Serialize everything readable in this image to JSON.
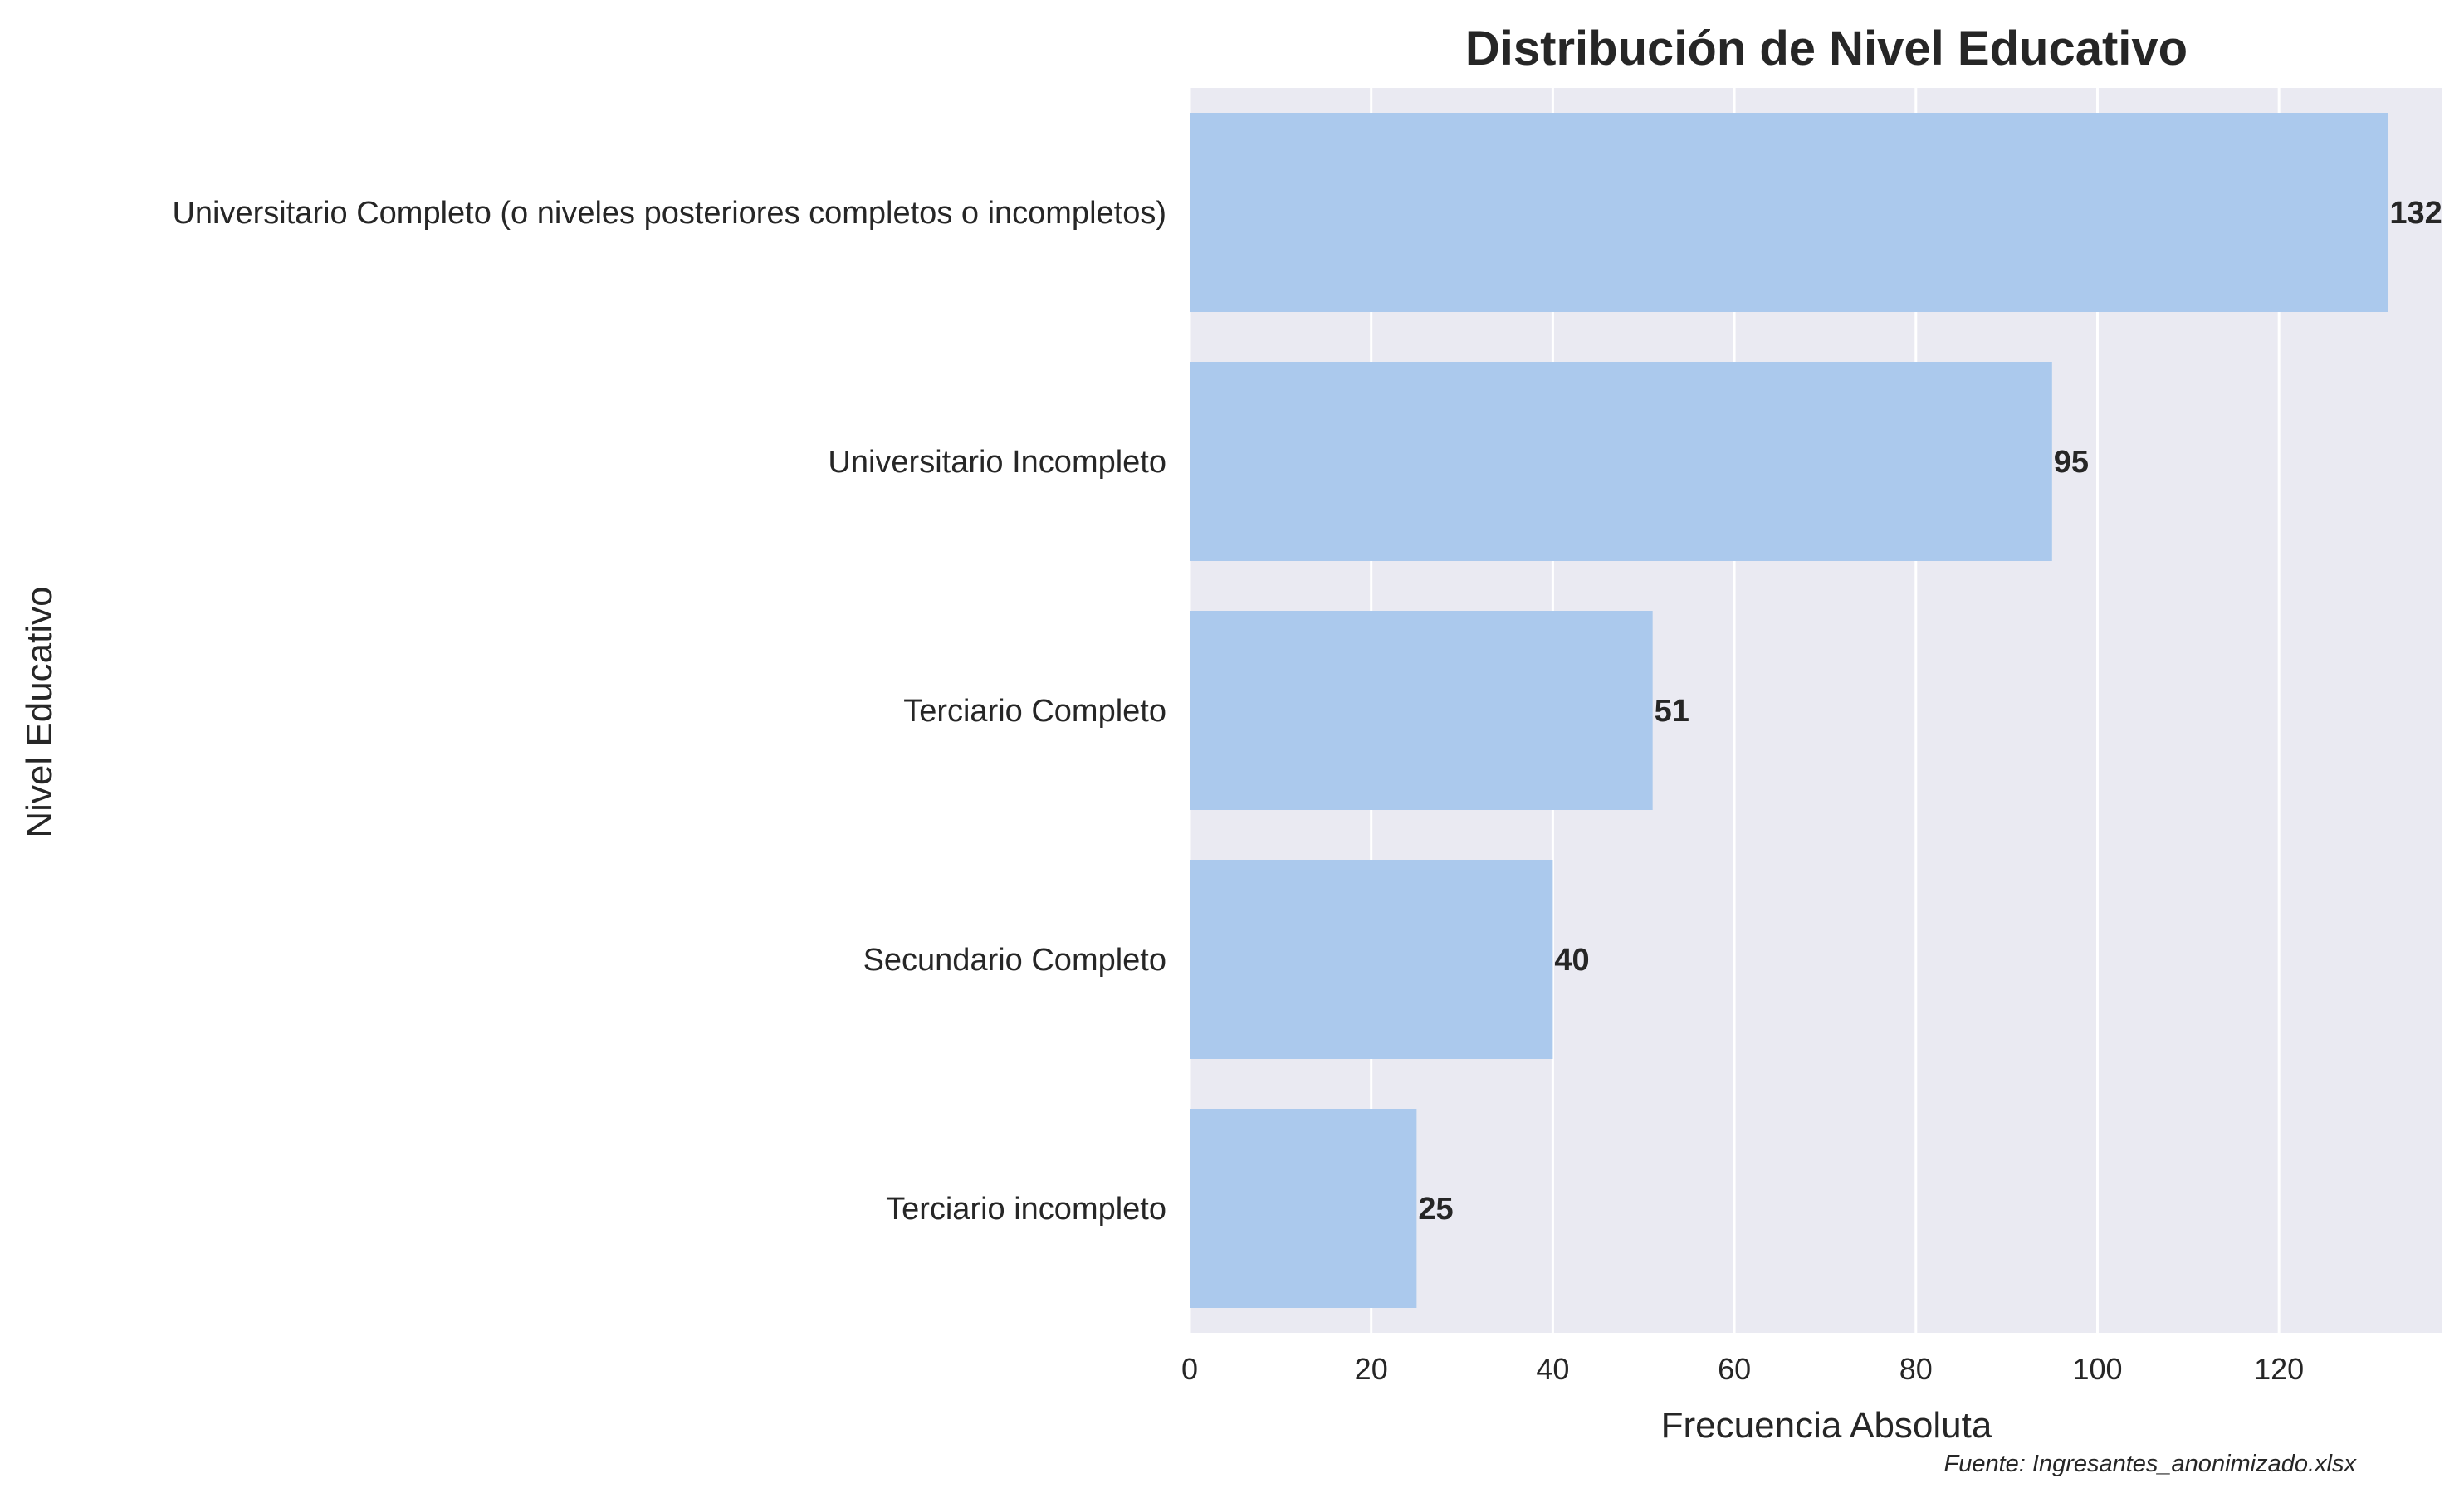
{
  "chart_data": {
    "type": "bar",
    "orientation": "horizontal",
    "title": "Distribución de Nivel Educativo",
    "xlabel": "Frecuencia Absoluta",
    "ylabel": "Nivel Educativo",
    "categories": [
      "Universitario Completo (o niveles posteriores completos o incompletos)",
      "Universitario Incompleto",
      "Terciario Completo",
      "Secundario Completo",
      "Terciario incompleto"
    ],
    "values": [
      132,
      95,
      51,
      40,
      25
    ],
    "data_labels": [
      "132",
      "95",
      "51",
      "40",
      "25"
    ],
    "xlim": [
      0,
      138
    ],
    "xticks": [
      0,
      20,
      40,
      60,
      80,
      100,
      120
    ],
    "xtick_labels": [
      "0",
      "20",
      "40",
      "60",
      "80",
      "100",
      "120"
    ],
    "grid": true,
    "bar_color": "#abc9ed",
    "background_color": "#eaeaf2",
    "gridline_color": "#ffffff"
  },
  "source_note": "Fuente: Ingresantes_anonimizado.xlsx"
}
